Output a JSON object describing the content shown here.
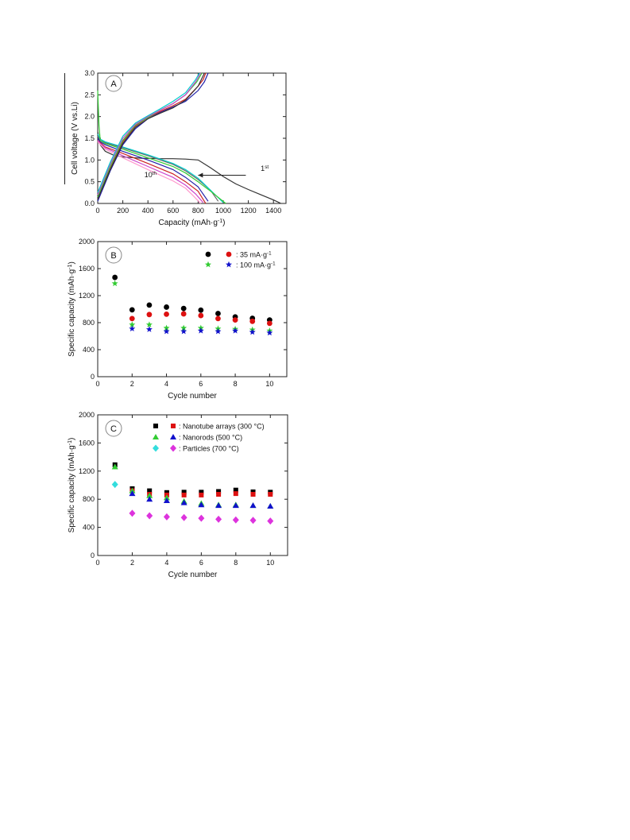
{
  "chart_data": [
    {
      "type": "line",
      "panel_label": "A",
      "xlabel": "Capacity (mAh·g",
      "xlabel_sup": "-1",
      "xlabel_close": ")",
      "ylabel": "Cell voltage (V vs.Li)",
      "xlim": [
        0,
        1500
      ],
      "ylim": [
        0.0,
        3.0
      ],
      "xticks": [
        0,
        200,
        400,
        600,
        800,
        1000,
        1200,
        1400
      ],
      "yticks": [
        0.0,
        0.5,
        1.0,
        1.5,
        2.0,
        2.5,
        3.0
      ],
      "annotations": [
        {
          "text": "1",
          "sup": "st"
        },
        {
          "text": "10",
          "sup": "th"
        }
      ],
      "series": [
        {
          "color": "#333333",
          "x": [
            0,
            20,
            60,
            120,
            200,
            350,
            500,
            600,
            700,
            800,
            900,
            1000,
            1100,
            1200,
            1300,
            1400,
            1460
          ],
          "y": [
            1.65,
            1.35,
            1.2,
            1.12,
            1.07,
            1.04,
            1.03,
            1.03,
            1.02,
            1.0,
            0.82,
            0.62,
            0.45,
            0.32,
            0.2,
            0.08,
            0.0
          ]
        },
        {
          "color": "#666666",
          "x": [
            0,
            20,
            60,
            200,
            400,
            600,
            700,
            800,
            900,
            960
          ],
          "y": [
            1.55,
            1.45,
            1.4,
            1.28,
            1.1,
            0.9,
            0.75,
            0.55,
            0.3,
            0.05
          ]
        },
        {
          "color": "#00cccc",
          "x": [
            0,
            20,
            60,
            200,
            400,
            600,
            700,
            800,
            900,
            1000
          ],
          "y": [
            1.6,
            1.48,
            1.42,
            1.3,
            1.12,
            0.92,
            0.78,
            0.58,
            0.3,
            0.02
          ]
        },
        {
          "color": "#33cc33",
          "x": [
            0,
            10,
            20,
            60,
            200,
            400,
            600,
            700,
            800,
            900,
            1020
          ],
          "y": [
            2.6,
            1.8,
            1.45,
            1.38,
            1.25,
            1.05,
            0.85,
            0.7,
            0.5,
            0.28,
            0.0
          ]
        },
        {
          "color": "#2222aa",
          "x": [
            0,
            20,
            60,
            200,
            400,
            600,
            700,
            800,
            880
          ],
          "y": [
            1.5,
            1.42,
            1.35,
            1.2,
            1.0,
            0.78,
            0.6,
            0.38,
            0.05
          ]
        },
        {
          "color": "#cc2222",
          "x": [
            0,
            20,
            60,
            200,
            400,
            600,
            700,
            800,
            860
          ],
          "y": [
            1.45,
            1.4,
            1.3,
            1.15,
            0.92,
            0.68,
            0.5,
            0.28,
            0.0
          ]
        },
        {
          "color": "#cc44cc",
          "x": [
            0,
            20,
            60,
            200,
            400,
            600,
            700,
            780,
            840
          ],
          "y": [
            1.45,
            1.38,
            1.28,
            1.1,
            0.85,
            0.6,
            0.42,
            0.22,
            0.02
          ]
        },
        {
          "color": "#ff99cc",
          "x": [
            0,
            20,
            60,
            200,
            400,
            600,
            700,
            760,
            820
          ],
          "y": [
            1.42,
            1.36,
            1.25,
            1.05,
            0.78,
            0.52,
            0.35,
            0.18,
            0.0
          ]
        },
        {
          "color": "#2222aa",
          "x": [
            0,
            100,
            200,
            300,
            400,
            500,
            600,
            700,
            800,
            850,
            880
          ],
          "y": [
            0.05,
            0.75,
            1.35,
            1.72,
            1.95,
            2.1,
            2.22,
            2.35,
            2.6,
            2.8,
            3.0
          ]
        },
        {
          "color": "#cc2222",
          "x": [
            0,
            100,
            200,
            300,
            400,
            500,
            600,
            700,
            800,
            840,
            860
          ],
          "y": [
            0.1,
            0.8,
            1.42,
            1.78,
            1.98,
            2.12,
            2.25,
            2.4,
            2.7,
            2.85,
            3.0
          ]
        },
        {
          "color": "#33cc33",
          "x": [
            0,
            100,
            200,
            300,
            400,
            500,
            600,
            700,
            790,
            830
          ],
          "y": [
            0.15,
            0.85,
            1.45,
            1.8,
            1.98,
            2.15,
            2.3,
            2.5,
            2.8,
            3.0
          ]
        },
        {
          "color": "#cc44cc",
          "x": [
            0,
            100,
            200,
            300,
            400,
            500,
            600,
            700,
            780,
            820
          ],
          "y": [
            0.2,
            0.9,
            1.5,
            1.82,
            2.0,
            2.15,
            2.3,
            2.5,
            2.8,
            3.0
          ]
        },
        {
          "color": "#333333",
          "x": [
            0,
            100,
            200,
            300,
            400,
            500,
            600,
            700,
            800,
            850
          ],
          "y": [
            0.1,
            0.78,
            1.38,
            1.75,
            1.95,
            2.08,
            2.2,
            2.38,
            2.7,
            3.0
          ]
        },
        {
          "color": "#00cccc",
          "x": [
            0,
            100,
            200,
            300,
            400,
            500,
            600,
            700,
            780,
            810
          ],
          "y": [
            0.25,
            0.95,
            1.55,
            1.85,
            2.02,
            2.18,
            2.35,
            2.55,
            2.85,
            3.0
          ]
        }
      ]
    },
    {
      "type": "scatter",
      "panel_label": "B",
      "xlabel": "Cycle number",
      "ylabel": "Specific capacity (mAh·g",
      "ylabel_sup": "-1",
      "ylabel_close": ")",
      "xlim": [
        0,
        11
      ],
      "ylim": [
        0,
        2000
      ],
      "xticks": [
        0,
        2,
        4,
        6,
        8,
        10
      ],
      "yticks": [
        0,
        400,
        800,
        1200,
        1600,
        2000
      ],
      "legend": [
        {
          "text": ":  35 mA·g",
          "sup": "-1"
        },
        {
          "text": ": 100 mA·g",
          "sup": "-1"
        }
      ],
      "series": [
        {
          "marker": "circle",
          "color": "#000000",
          "x": [
            1,
            2,
            3,
            4,
            5,
            6,
            7,
            8,
            9,
            10
          ],
          "y": [
            1470,
            990,
            1060,
            1030,
            1010,
            985,
            935,
            885,
            865,
            840
          ]
        },
        {
          "marker": "circle",
          "color": "#dd1111",
          "x": [
            2,
            3,
            4,
            5,
            6,
            7,
            8,
            9,
            10
          ],
          "y": [
            860,
            920,
            925,
            930,
            905,
            860,
            840,
            820,
            790
          ]
        },
        {
          "marker": "star",
          "color": "#33cc33",
          "x": [
            1,
            2,
            3,
            4,
            5,
            6,
            7,
            8,
            9,
            10
          ],
          "y": [
            1380,
            770,
            770,
            720,
            720,
            720,
            710,
            705,
            695,
            680
          ]
        },
        {
          "marker": "star",
          "color": "#1111cc",
          "x": [
            2,
            3,
            4,
            5,
            6,
            7,
            8,
            9,
            10
          ],
          "y": [
            710,
            700,
            670,
            670,
            680,
            670,
            680,
            660,
            650
          ]
        }
      ]
    },
    {
      "type": "scatter",
      "panel_label": "C",
      "xlabel": "Cycle number",
      "ylabel": "Specific capacity (mAh·g",
      "ylabel_sup": "-1",
      "ylabel_close": ")",
      "xlim": [
        0,
        11
      ],
      "ylim": [
        0,
        2000
      ],
      "xticks": [
        0,
        2,
        4,
        6,
        8,
        10
      ],
      "yticks": [
        0,
        400,
        800,
        1200,
        1600,
        2000
      ],
      "legend": [
        {
          "text": ": Nanotube arrays (300 °C)"
        },
        {
          "text": ": Nanorods (500 °C)"
        },
        {
          "text": ": Particles (700 °C)"
        }
      ],
      "series": [
        {
          "marker": "square",
          "color": "#000000",
          "x": [
            1,
            2,
            3,
            4,
            5,
            6,
            7,
            8,
            9,
            10
          ],
          "y": [
            1290,
            950,
            920,
            895,
            900,
            900,
            910,
            930,
            905,
            900
          ]
        },
        {
          "marker": "square",
          "color": "#dd1111",
          "x": [
            2,
            3,
            4,
            5,
            6,
            7,
            8,
            9,
            10
          ],
          "y": [
            920,
            870,
            860,
            860,
            860,
            870,
            880,
            870,
            870
          ]
        },
        {
          "marker": "triangle",
          "color": "#33cc33",
          "x": [
            1,
            2,
            3,
            4,
            5,
            6,
            7,
            8,
            9,
            10
          ],
          "y": [
            1260,
            920,
            850,
            820,
            770,
            740,
            720,
            720,
            710,
            700
          ]
        },
        {
          "marker": "triangle",
          "color": "#1111cc",
          "x": [
            2,
            3,
            4,
            5,
            6,
            7,
            8,
            9,
            10
          ],
          "y": [
            880,
            800,
            780,
            750,
            720,
            710,
            710,
            710,
            700
          ]
        },
        {
          "marker": "diamond",
          "color": "#33dddd",
          "x": [
            1
          ],
          "y": [
            1010
          ]
        },
        {
          "marker": "diamond",
          "color": "#dd33dd",
          "x": [
            2,
            3,
            4,
            5,
            6,
            7,
            8,
            9,
            10
          ],
          "y": [
            600,
            565,
            550,
            540,
            530,
            515,
            505,
            500,
            490
          ]
        }
      ]
    }
  ]
}
